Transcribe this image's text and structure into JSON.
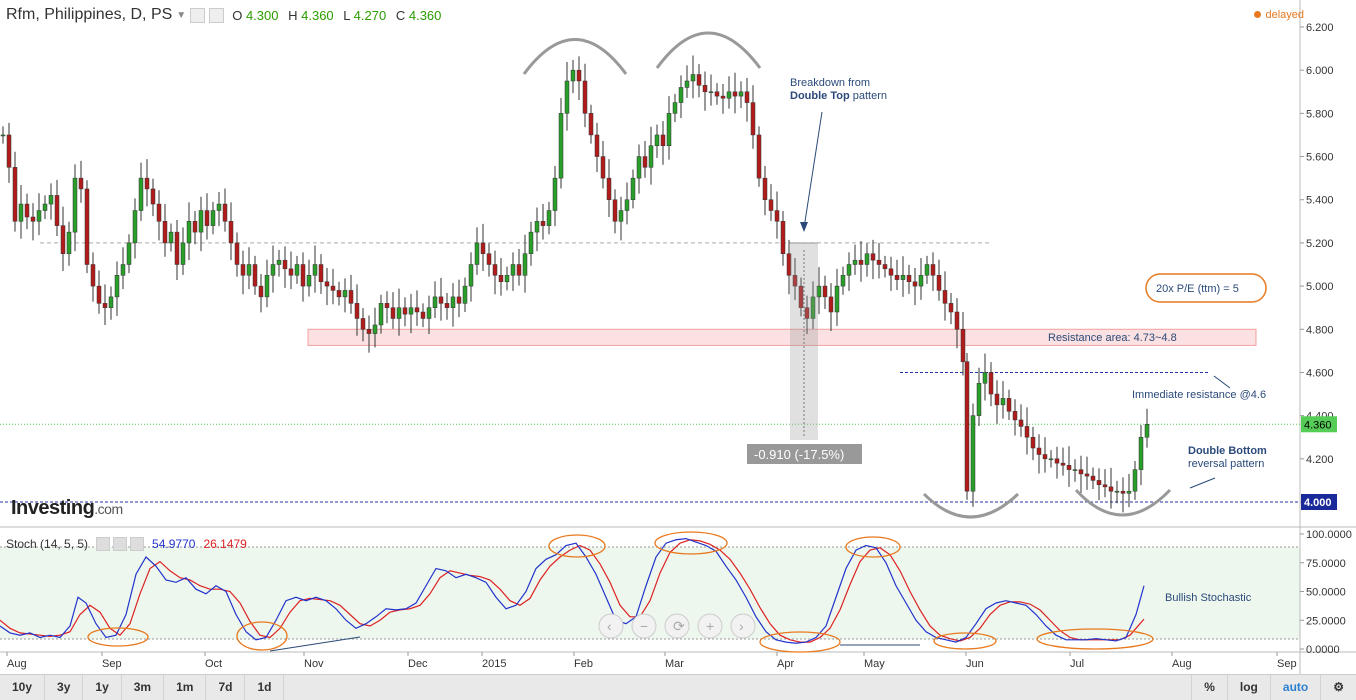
{
  "header": {
    "symbol": "Rfm, Philippines, D, PS",
    "open_label": "O",
    "open": "4.300",
    "high_label": "H",
    "high": "4.360",
    "low_label": "L",
    "low": "4.270",
    "close_label": "C",
    "close": "4.360",
    "delayed": "delayed"
  },
  "stoch": {
    "label": "Stoch (14, 5, 5)",
    "k_value": "54.9770",
    "d_value": "26.1479"
  },
  "logo": {
    "main": "Investing",
    "suffix": ".com"
  },
  "timeframes": [
    "10y",
    "3y",
    "1y",
    "3m",
    "1m",
    "7d",
    "1d"
  ],
  "right_controls": [
    "%",
    "log",
    "auto"
  ],
  "annotations": {
    "breakdown_line1": "Breakdown from",
    "breakdown_bold": "Double Top",
    "breakdown_line2": " pattern",
    "measure": "-0.910 (-17.5%)",
    "pe": "20x P/E (ttm) = 5",
    "resistance_area": "Resistance area: 4.73~4.8",
    "immediate_resistance": "Immediate resistance @4.6",
    "double_bottom_bold": "Double Bottom",
    "double_bottom_line2": "reversal pattern",
    "bullish_stochastic": "Bullish Stochastic"
  },
  "price_labels": {
    "last": "4.360",
    "support": "4.000"
  },
  "colors": {
    "up": "#2a9d2a",
    "down": "#b01c1c",
    "stoch_k": "#2233cc",
    "stoch_d": "#dd2222",
    "accent": "#e8791e"
  },
  "chart_data": {
    "type": "candlestick",
    "price_axis": {
      "min": 4.0,
      "max": 6.2,
      "ticks": [
        "4.000",
        "4.200",
        "4.400",
        "4.600",
        "4.800",
        "5.000",
        "5.200",
        "5.400",
        "5.600",
        "5.800",
        "6.000",
        "6.200"
      ]
    },
    "stoch_axis": {
      "ticks": [
        "0.0000",
        "25.0000",
        "50.0000",
        "75.0000",
        "100.0000"
      ]
    },
    "x_axis_labels": [
      "Aug",
      "Sep",
      "Oct",
      "Nov",
      "Dec",
      "2015",
      "Feb",
      "Mar",
      "Apr",
      "May",
      "Jun",
      "Jul",
      "Aug",
      "Sep"
    ],
    "levels": {
      "double_top_neckline": 5.2,
      "resistance_low": 4.73,
      "resistance_high": 4.8,
      "immediate_resistance": 4.6,
      "support": 4.0,
      "last": 4.36
    },
    "price_path": [
      [
        0,
        5.7
      ],
      [
        6,
        5.55
      ],
      [
        12,
        5.3
      ],
      [
        18,
        5.38
      ],
      [
        24,
        5.32
      ],
      [
        30,
        5.3
      ],
      [
        36,
        5.35
      ],
      [
        42,
        5.38
      ],
      [
        48,
        5.42
      ],
      [
        54,
        5.28
      ],
      [
        60,
        5.15
      ],
      [
        66,
        5.25
      ],
      [
        72,
        5.5
      ],
      [
        78,
        5.45
      ],
      [
        84,
        5.1
      ],
      [
        90,
        5.0
      ],
      [
        96,
        4.92
      ],
      [
        102,
        4.9
      ],
      [
        108,
        4.95
      ],
      [
        114,
        5.05
      ],
      [
        120,
        5.1
      ],
      [
        126,
        5.2
      ],
      [
        132,
        5.35
      ],
      [
        138,
        5.5
      ],
      [
        144,
        5.45
      ],
      [
        150,
        5.38
      ],
      [
        156,
        5.3
      ],
      [
        162,
        5.2
      ],
      [
        168,
        5.25
      ],
      [
        174,
        5.1
      ],
      [
        180,
        5.2
      ],
      [
        186,
        5.3
      ],
      [
        192,
        5.25
      ],
      [
        198,
        5.35
      ],
      [
        204,
        5.28
      ],
      [
        210,
        5.35
      ],
      [
        216,
        5.38
      ],
      [
        222,
        5.3
      ],
      [
        228,
        5.2
      ],
      [
        234,
        5.1
      ],
      [
        240,
        5.05
      ],
      [
        246,
        5.1
      ],
      [
        252,
        5.0
      ],
      [
        258,
        4.95
      ],
      [
        264,
        5.05
      ],
      [
        270,
        5.1
      ],
      [
        276,
        5.12
      ],
      [
        282,
        5.08
      ],
      [
        288,
        5.05
      ],
      [
        294,
        5.1
      ],
      [
        300,
        5.0
      ],
      [
        306,
        5.05
      ],
      [
        312,
        5.1
      ],
      [
        318,
        5.02
      ],
      [
        324,
        5.0
      ],
      [
        330,
        4.98
      ],
      [
        336,
        4.95
      ],
      [
        342,
        4.98
      ],
      [
        348,
        4.92
      ],
      [
        354,
        4.85
      ],
      [
        360,
        4.8
      ],
      [
        366,
        4.78
      ],
      [
        372,
        4.82
      ],
      [
        378,
        4.92
      ],
      [
        384,
        4.9
      ],
      [
        390,
        4.85
      ],
      [
        396,
        4.9
      ],
      [
        402,
        4.87
      ],
      [
        408,
        4.9
      ],
      [
        414,
        4.88
      ],
      [
        420,
        4.85
      ],
      [
        426,
        4.9
      ],
      [
        432,
        4.95
      ],
      [
        438,
        4.92
      ],
      [
        444,
        4.9
      ],
      [
        450,
        4.95
      ],
      [
        456,
        4.92
      ],
      [
        462,
        5.0
      ],
      [
        468,
        5.1
      ],
      [
        474,
        5.2
      ],
      [
        480,
        5.15
      ],
      [
        486,
        5.1
      ],
      [
        492,
        5.05
      ],
      [
        498,
        5.02
      ],
      [
        504,
        5.05
      ],
      [
        510,
        5.1
      ],
      [
        516,
        5.05
      ],
      [
        522,
        5.15
      ],
      [
        528,
        5.25
      ],
      [
        534,
        5.3
      ],
      [
        540,
        5.28
      ],
      [
        546,
        5.35
      ],
      [
        552,
        5.5
      ],
      [
        558,
        5.8
      ],
      [
        564,
        5.95
      ],
      [
        570,
        6.0
      ],
      [
        576,
        5.95
      ],
      [
        582,
        5.8
      ],
      [
        588,
        5.7
      ],
      [
        594,
        5.6
      ],
      [
        600,
        5.5
      ],
      [
        606,
        5.4
      ],
      [
        612,
        5.3
      ],
      [
        618,
        5.35
      ],
      [
        624,
        5.4
      ],
      [
        630,
        5.5
      ],
      [
        636,
        5.6
      ],
      [
        642,
        5.55
      ],
      [
        648,
        5.65
      ],
      [
        654,
        5.7
      ],
      [
        660,
        5.65
      ],
      [
        666,
        5.8
      ],
      [
        672,
        5.85
      ],
      [
        678,
        5.92
      ],
      [
        684,
        5.95
      ],
      [
        690,
        5.98
      ],
      [
        696,
        5.93
      ],
      [
        702,
        5.9
      ],
      [
        708,
        5.9
      ],
      [
        714,
        5.88
      ],
      [
        720,
        5.87
      ],
      [
        726,
        5.9
      ],
      [
        732,
        5.88
      ],
      [
        738,
        5.9
      ],
      [
        744,
        5.85
      ],
      [
        750,
        5.7
      ],
      [
        756,
        5.5
      ],
      [
        762,
        5.4
      ],
      [
        768,
        5.35
      ],
      [
        774,
        5.3
      ],
      [
        780,
        5.15
      ],
      [
        786,
        5.05
      ],
      [
        792,
        5.0
      ],
      [
        798,
        4.9
      ],
      [
        804,
        4.85
      ],
      [
        810,
        4.95
      ],
      [
        816,
        5.0
      ],
      [
        822,
        4.95
      ],
      [
        828,
        4.88
      ],
      [
        834,
        5.0
      ],
      [
        840,
        5.05
      ],
      [
        846,
        5.1
      ],
      [
        852,
        5.12
      ],
      [
        858,
        5.1
      ],
      [
        864,
        5.15
      ],
      [
        870,
        5.12
      ],
      [
        876,
        5.1
      ],
      [
        882,
        5.08
      ],
      [
        888,
        5.05
      ],
      [
        894,
        5.03
      ],
      [
        900,
        5.05
      ],
      [
        906,
        5.02
      ],
      [
        912,
        5.0
      ],
      [
        918,
        5.05
      ],
      [
        924,
        5.1
      ],
      [
        930,
        5.05
      ],
      [
        936,
        4.98
      ],
      [
        942,
        4.92
      ],
      [
        948,
        4.88
      ],
      [
        954,
        4.8
      ],
      [
        960,
        4.65
      ],
      [
        964,
        4.05
      ],
      [
        970,
        4.4
      ],
      [
        976,
        4.55
      ],
      [
        982,
        4.6
      ],
      [
        988,
        4.5
      ],
      [
        994,
        4.45
      ],
      [
        1000,
        4.48
      ],
      [
        1006,
        4.42
      ],
      [
        1012,
        4.38
      ],
      [
        1018,
        4.35
      ],
      [
        1024,
        4.3
      ],
      [
        1030,
        4.25
      ],
      [
        1036,
        4.22
      ],
      [
        1042,
        4.2
      ],
      [
        1048,
        4.2
      ],
      [
        1054,
        4.18
      ],
      [
        1060,
        4.17
      ],
      [
        1066,
        4.15
      ],
      [
        1072,
        4.15
      ],
      [
        1078,
        4.13
      ],
      [
        1084,
        4.12
      ],
      [
        1090,
        4.1
      ],
      [
        1096,
        4.08
      ],
      [
        1102,
        4.07
      ],
      [
        1108,
        4.05
      ],
      [
        1114,
        4.05
      ],
      [
        1120,
        4.04
      ],
      [
        1126,
        4.05
      ],
      [
        1132,
        4.15
      ],
      [
        1138,
        4.3
      ],
      [
        1144,
        4.36
      ]
    ],
    "stoch_k_path": [
      [
        0,
        20
      ],
      [
        10,
        14
      ],
      [
        20,
        12
      ],
      [
        30,
        14
      ],
      [
        40,
        10
      ],
      [
        50,
        12
      ],
      [
        60,
        10
      ],
      [
        70,
        20
      ],
      [
        78,
        45
      ],
      [
        86,
        40
      ],
      [
        96,
        22
      ],
      [
        106,
        10
      ],
      [
        116,
        12
      ],
      [
        126,
        30
      ],
      [
        136,
        65
      ],
      [
        146,
        80
      ],
      [
        156,
        72
      ],
      [
        166,
        60
      ],
      [
        176,
        58
      ],
      [
        186,
        62
      ],
      [
        196,
        52
      ],
      [
        206,
        48
      ],
      [
        216,
        55
      ],
      [
        226,
        50
      ],
      [
        236,
        30
      ],
      [
        246,
        15
      ],
      [
        256,
        8
      ],
      [
        266,
        10
      ],
      [
        276,
        25
      ],
      [
        286,
        42
      ],
      [
        296,
        45
      ],
      [
        306,
        42
      ],
      [
        316,
        45
      ],
      [
        326,
        42
      ],
      [
        336,
        35
      ],
      [
        346,
        25
      ],
      [
        356,
        18
      ],
      [
        366,
        22
      ],
      [
        376,
        28
      ],
      [
        386,
        35
      ],
      [
        396,
        34
      ],
      [
        406,
        35
      ],
      [
        416,
        40
      ],
      [
        426,
        55
      ],
      [
        436,
        70
      ],
      [
        446,
        68
      ],
      [
        456,
        62
      ],
      [
        466,
        65
      ],
      [
        476,
        62
      ],
      [
        486,
        58
      ],
      [
        496,
        45
      ],
      [
        506,
        35
      ],
      [
        516,
        38
      ],
      [
        526,
        50
      ],
      [
        536,
        70
      ],
      [
        546,
        78
      ],
      [
        556,
        82
      ],
      [
        566,
        90
      ],
      [
        576,
        92
      ],
      [
        586,
        80
      ],
      [
        596,
        65
      ],
      [
        606,
        45
      ],
      [
        616,
        25
      ],
      [
        626,
        22
      ],
      [
        636,
        28
      ],
      [
        646,
        55
      ],
      [
        656,
        80
      ],
      [
        666,
        92
      ],
      [
        676,
        95
      ],
      [
        686,
        96
      ],
      [
        696,
        93
      ],
      [
        706,
        90
      ],
      [
        716,
        85
      ],
      [
        726,
        72
      ],
      [
        736,
        60
      ],
      [
        746,
        45
      ],
      [
        756,
        28
      ],
      [
        766,
        15
      ],
      [
        776,
        8
      ],
      [
        786,
        6
      ],
      [
        796,
        5
      ],
      [
        806,
        6
      ],
      [
        816,
        10
      ],
      [
        826,
        20
      ],
      [
        836,
        45
      ],
      [
        846,
        70
      ],
      [
        856,
        86
      ],
      [
        866,
        90
      ],
      [
        876,
        88
      ],
      [
        886,
        75
      ],
      [
        896,
        55
      ],
      [
        906,
        40
      ],
      [
        916,
        25
      ],
      [
        926,
        15
      ],
      [
        936,
        10
      ],
      [
        946,
        8
      ],
      [
        956,
        6
      ],
      [
        966,
        10
      ],
      [
        976,
        22
      ],
      [
        986,
        35
      ],
      [
        996,
        40
      ],
      [
        1006,
        42
      ],
      [
        1016,
        40
      ],
      [
        1026,
        38
      ],
      [
        1036,
        30
      ],
      [
        1046,
        20
      ],
      [
        1056,
        12
      ],
      [
        1066,
        8
      ],
      [
        1076,
        8
      ],
      [
        1086,
        8
      ],
      [
        1096,
        9
      ],
      [
        1106,
        8
      ],
      [
        1116,
        7
      ],
      [
        1126,
        10
      ],
      [
        1136,
        30
      ],
      [
        1144,
        55
      ]
    ],
    "stoch_d_path": [
      [
        0,
        25
      ],
      [
        10,
        18
      ],
      [
        20,
        14
      ],
      [
        30,
        13
      ],
      [
        40,
        12
      ],
      [
        50,
        11
      ],
      [
        60,
        12
      ],
      [
        70,
        15
      ],
      [
        80,
        30
      ],
      [
        90,
        38
      ],
      [
        100,
        32
      ],
      [
        110,
        18
      ],
      [
        120,
        12
      ],
      [
        130,
        22
      ],
      [
        140,
        48
      ],
      [
        150,
        70
      ],
      [
        160,
        76
      ],
      [
        170,
        68
      ],
      [
        180,
        62
      ],
      [
        190,
        60
      ],
      [
        200,
        55
      ],
      [
        210,
        52
      ],
      [
        220,
        52
      ],
      [
        230,
        50
      ],
      [
        240,
        40
      ],
      [
        250,
        24
      ],
      [
        260,
        12
      ],
      [
        270,
        10
      ],
      [
        280,
        18
      ],
      [
        290,
        32
      ],
      [
        300,
        42
      ],
      [
        310,
        44
      ],
      [
        320,
        43
      ],
      [
        330,
        42
      ],
      [
        340,
        38
      ],
      [
        350,
        30
      ],
      [
        360,
        22
      ],
      [
        370,
        20
      ],
      [
        380,
        25
      ],
      [
        390,
        32
      ],
      [
        400,
        34
      ],
      [
        410,
        35
      ],
      [
        420,
        38
      ],
      [
        430,
        48
      ],
      [
        440,
        62
      ],
      [
        450,
        68
      ],
      [
        460,
        66
      ],
      [
        470,
        64
      ],
      [
        480,
        63
      ],
      [
        490,
        60
      ],
      [
        500,
        52
      ],
      [
        510,
        42
      ],
      [
        520,
        38
      ],
      [
        530,
        44
      ],
      [
        540,
        60
      ],
      [
        550,
        72
      ],
      [
        560,
        80
      ],
      [
        570,
        86
      ],
      [
        580,
        90
      ],
      [
        590,
        86
      ],
      [
        600,
        74
      ],
      [
        610,
        58
      ],
      [
        620,
        38
      ],
      [
        630,
        28
      ],
      [
        640,
        28
      ],
      [
        650,
        42
      ],
      [
        660,
        66
      ],
      [
        670,
        84
      ],
      [
        680,
        92
      ],
      [
        690,
        95
      ],
      [
        700,
        94
      ],
      [
        710,
        91
      ],
      [
        720,
        86
      ],
      [
        730,
        78
      ],
      [
        740,
        66
      ],
      [
        750,
        52
      ],
      [
        760,
        36
      ],
      [
        770,
        22
      ],
      [
        780,
        12
      ],
      [
        790,
        8
      ],
      [
        800,
        6
      ],
      [
        810,
        6
      ],
      [
        820,
        10
      ],
      [
        830,
        18
      ],
      [
        840,
        34
      ],
      [
        850,
        56
      ],
      [
        860,
        76
      ],
      [
        870,
        86
      ],
      [
        880,
        88
      ],
      [
        890,
        82
      ],
      [
        900,
        68
      ],
      [
        910,
        50
      ],
      [
        920,
        34
      ],
      [
        930,
        20
      ],
      [
        940,
        12
      ],
      [
        950,
        9
      ],
      [
        960,
        7
      ],
      [
        970,
        10
      ],
      [
        980,
        18
      ],
      [
        990,
        30
      ],
      [
        1000,
        38
      ],
      [
        1010,
        41
      ],
      [
        1020,
        41
      ],
      [
        1030,
        39
      ],
      [
        1040,
        34
      ],
      [
        1050,
        25
      ],
      [
        1060,
        16
      ],
      [
        1070,
        10
      ],
      [
        1080,
        8
      ],
      [
        1090,
        8
      ],
      [
        1100,
        8
      ],
      [
        1110,
        8
      ],
      [
        1120,
        8
      ],
      [
        1130,
        12
      ],
      [
        1140,
        22
      ],
      [
        1144,
        26
      ]
    ]
  }
}
